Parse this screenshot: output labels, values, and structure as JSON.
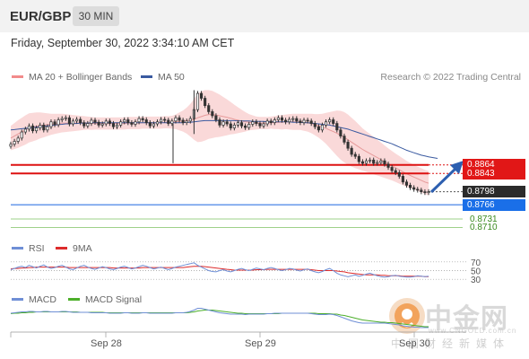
{
  "header": {
    "symbol": "EUR/GBP",
    "timeframe": "30 MIN"
  },
  "timestamp": "Friday, September 30, 2022 3:34:10 AM CET",
  "legend": {
    "bb": {
      "label": "MA 20 + Bollinger Bands",
      "color": "#f28b8b"
    },
    "ma50": {
      "label": "MA 50",
      "color": "#3a5aa0"
    },
    "rsi": {
      "label": "RSI",
      "color": "#6f8fd6"
    },
    "rsi9ma": {
      "label": "9MA",
      "color": "#dd2c2c"
    },
    "macd": {
      "label": "MACD",
      "color": "#6f8fd6"
    },
    "macd_signal": {
      "label": "MACD Signal",
      "color": "#4caf2a"
    }
  },
  "copyright": "Research © 2022 Trading Central",
  "levels": [
    {
      "value": "0.8864",
      "kind": "resistance"
    },
    {
      "value": "0.8843",
      "kind": "resistance"
    },
    {
      "value": "0.8798",
      "kind": "last"
    },
    {
      "value": "0.8766",
      "kind": "pivot"
    },
    {
      "value": "0.8731",
      "kind": "support"
    },
    {
      "value": "0.8710",
      "kind": "support"
    }
  ],
  "rsi_levels": [
    "70",
    "50",
    "30"
  ],
  "dates": [
    "Sep 28",
    "Sep 29",
    "Sep 30"
  ],
  "watermark": {
    "main": "中金网",
    "url": "www.CNGOLD.com.cn",
    "sub": "中国财经新媒体"
  },
  "chart_data": {
    "type": "candlestick",
    "ylim": [
      0.87,
      0.906
    ],
    "price": [
      0.8915,
      0.8922,
      0.893,
      0.8945,
      0.8952,
      0.896,
      0.8948,
      0.8955,
      0.8962,
      0.895,
      0.8958,
      0.897,
      0.8963,
      0.8975,
      0.8978,
      0.898,
      0.8965,
      0.8972,
      0.8976,
      0.8968,
      0.896,
      0.8966,
      0.8974,
      0.8969,
      0.8962,
      0.8965,
      0.8972,
      0.8966,
      0.8958,
      0.8962,
      0.897,
      0.8975,
      0.8968,
      0.8964,
      0.897,
      0.8978,
      0.8975,
      0.8968,
      0.896,
      0.8965,
      0.897,
      0.8976,
      0.8974,
      0.8966,
      0.8972,
      0.898,
      0.8974,
      0.8968,
      0.8972,
      0.8978,
      0.9,
      0.904,
      0.9028,
      0.901,
      0.8995,
      0.8985,
      0.8975,
      0.8962,
      0.897,
      0.8965,
      0.8955,
      0.8962,
      0.8968,
      0.896,
      0.8956,
      0.8964,
      0.897,
      0.8966,
      0.896,
      0.8965,
      0.8972,
      0.8968,
      0.8975,
      0.898,
      0.8974,
      0.897,
      0.8976,
      0.8978,
      0.8972,
      0.8968,
      0.8974,
      0.8972,
      0.8966,
      0.8958,
      0.895,
      0.8962,
      0.897,
      0.8975,
      0.8966,
      0.895,
      0.8935,
      0.892,
      0.8905,
      0.889,
      0.8885,
      0.8872,
      0.8868,
      0.8874,
      0.8876,
      0.8868,
      0.887,
      0.8874,
      0.8866,
      0.8858,
      0.885,
      0.8845,
      0.8836,
      0.8822,
      0.8814,
      0.8808,
      0.8804,
      0.8802,
      0.8798,
      0.8796,
      0.8798
    ],
    "ma20": [
      0.893,
      0.8935,
      0.894,
      0.8945,
      0.895,
      0.8955,
      0.8957,
      0.8959,
      0.8961,
      0.8962,
      0.8963,
      0.8964,
      0.8965,
      0.8966,
      0.8967,
      0.8967,
      0.8967,
      0.8967,
      0.8967,
      0.8967,
      0.8967,
      0.8967,
      0.8966,
      0.8966,
      0.8966,
      0.8966,
      0.8966,
      0.8966,
      0.8966,
      0.8966,
      0.8966,
      0.8966,
      0.8967,
      0.8967,
      0.8967,
      0.8967,
      0.8968,
      0.8968,
      0.8968,
      0.8968,
      0.8968,
      0.8968,
      0.8969,
      0.8969,
      0.8969,
      0.897,
      0.8971,
      0.8972,
      0.8973,
      0.8974,
      0.8976,
      0.898,
      0.8983,
      0.8986,
      0.8988,
      0.8988,
      0.8987,
      0.8985,
      0.8983,
      0.8981,
      0.8979,
      0.8976,
      0.8974,
      0.8972,
      0.897,
      0.8969,
      0.8968,
      0.8967,
      0.8967,
      0.8967,
      0.8967,
      0.8968,
      0.8968,
      0.8969,
      0.8969,
      0.897,
      0.897,
      0.897,
      0.897,
      0.897,
      0.8969,
      0.8968,
      0.8966,
      0.8963,
      0.896,
      0.8957,
      0.8954,
      0.895,
      0.8946,
      0.8942,
      0.8937,
      0.8932,
      0.8926,
      0.892,
      0.8914,
      0.8908,
      0.8902,
      0.8897,
      0.8892,
      0.8887,
      0.8882,
      0.8877,
      0.8872,
      0.8867,
      0.8862,
      0.8857,
      0.8852,
      0.8847,
      0.8842,
      0.8838,
      0.8834,
      0.883,
      0.8826,
      0.8822,
      0.8819
    ],
    "bb_width": [
      0.003,
      0.0032,
      0.0034,
      0.0035,
      0.0036,
      0.0036,
      0.0035,
      0.0034,
      0.0032,
      0.003,
      0.0028,
      0.0026,
      0.0025,
      0.0024,
      0.0023,
      0.0022,
      0.0021,
      0.002,
      0.0019,
      0.0018,
      0.0017,
      0.0016,
      0.0016,
      0.0015,
      0.0015,
      0.0015,
      0.0015,
      0.0015,
      0.0015,
      0.0015,
      0.0015,
      0.0015,
      0.0015,
      0.0015,
      0.0015,
      0.0015,
      0.0015,
      0.0015,
      0.0015,
      0.0015,
      0.0015,
      0.0015,
      0.0015,
      0.0015,
      0.0016,
      0.0018,
      0.0022,
      0.0026,
      0.0032,
      0.004,
      0.005,
      0.006,
      0.0062,
      0.0062,
      0.006,
      0.0058,
      0.0055,
      0.0052,
      0.0048,
      0.0044,
      0.004,
      0.0036,
      0.0032,
      0.0028,
      0.0024,
      0.002,
      0.0018,
      0.0016,
      0.0015,
      0.0015,
      0.0015,
      0.0015,
      0.0016,
      0.0017,
      0.0018,
      0.0018,
      0.0019,
      0.002,
      0.002,
      0.002,
      0.0021,
      0.0022,
      0.0024,
      0.0026,
      0.0029,
      0.0033,
      0.0038,
      0.0044,
      0.005,
      0.0056,
      0.006,
      0.0062,
      0.0062,
      0.006,
      0.0058,
      0.0055,
      0.0052,
      0.005,
      0.0048,
      0.0046,
      0.0044,
      0.0042,
      0.004,
      0.0038,
      0.0036,
      0.0035,
      0.0034,
      0.0033,
      0.0032,
      0.0031,
      0.003,
      0.003,
      0.003,
      0.003,
      0.003
    ],
    "ma50": [
      0.895,
      0.8951,
      0.8952,
      0.8953,
      0.8954,
      0.8955,
      0.8956,
      0.8957,
      0.8958,
      0.8959,
      0.896,
      0.8961,
      0.8962,
      0.8963,
      0.8964,
      0.8965,
      0.8965,
      0.8966,
      0.8966,
      0.8967,
      0.8967,
      0.8967,
      0.8968,
      0.8968,
      0.8968,
      0.8968,
      0.8968,
      0.8968,
      0.8968,
      0.8968,
      0.8968,
      0.8968,
      0.8968,
      0.8968,
      0.8968,
      0.8968,
      0.8968,
      0.8968,
      0.8968,
      0.8968,
      0.8968,
      0.8968,
      0.8968,
      0.8968,
      0.8968,
      0.8968,
      0.8968,
      0.8968,
      0.8969,
      0.8969,
      0.897,
      0.8971,
      0.8972,
      0.8973,
      0.8973,
      0.8973,
      0.8973,
      0.8973,
      0.8973,
      0.8973,
      0.8973,
      0.8973,
      0.8972,
      0.8972,
      0.8972,
      0.8972,
      0.8971,
      0.8971,
      0.8971,
      0.8971,
      0.897,
      0.897,
      0.897,
      0.897,
      0.897,
      0.897,
      0.897,
      0.8969,
      0.8969,
      0.8969,
      0.8968,
      0.8968,
      0.8967,
      0.8966,
      0.8965,
      0.8964,
      0.8963,
      0.8962,
      0.896,
      0.8958,
      0.8956,
      0.8954,
      0.8952,
      0.8949,
      0.8946,
      0.8943,
      0.894,
      0.8937,
      0.8934,
      0.8931,
      0.8928,
      0.8925,
      0.8922,
      0.8919,
      0.8916,
      0.8912,
      0.8908,
      0.8904,
      0.89,
      0.8897,
      0.8894,
      0.8891,
      0.8888,
      0.8886,
      0.8884
    ],
    "rsi": [
      52,
      55,
      58,
      60,
      57,
      62,
      59,
      56,
      60,
      63,
      58,
      55,
      57,
      60,
      62,
      58,
      54,
      52,
      56,
      60,
      62,
      58,
      55,
      53,
      56,
      59,
      57,
      54,
      52,
      55,
      58,
      60,
      57,
      54,
      56,
      59,
      62,
      60,
      57,
      54,
      56,
      58,
      55,
      52,
      55,
      58,
      60,
      62,
      64,
      66,
      68,
      62,
      58,
      54,
      50,
      48,
      47,
      50,
      52,
      49,
      47,
      50,
      53,
      55,
      52,
      50,
      53,
      56,
      54,
      52,
      55,
      57,
      55,
      52,
      50,
      52,
      55,
      54,
      51,
      49,
      52,
      54,
      50,
      47,
      45,
      48,
      52,
      55,
      50,
      44,
      40,
      38,
      36,
      38,
      40,
      37,
      39,
      42,
      44,
      41,
      38,
      36,
      35,
      36,
      38,
      39,
      37,
      36,
      35,
      35,
      36,
      38,
      37,
      36,
      37
    ],
    "rsi_ma": [
      54,
      55,
      55,
      56,
      56,
      57,
      57,
      58,
      58,
      58,
      58,
      58,
      58,
      58,
      58,
      58,
      57,
      57,
      57,
      57,
      57,
      57,
      57,
      57,
      57,
      57,
      57,
      57,
      56,
      56,
      56,
      56,
      56,
      56,
      56,
      56,
      57,
      57,
      57,
      57,
      57,
      57,
      57,
      57,
      57,
      57,
      57,
      57,
      58,
      59,
      60,
      60,
      60,
      59,
      58,
      57,
      56,
      55,
      54,
      53,
      52,
      51,
      51,
      51,
      51,
      51,
      51,
      52,
      52,
      52,
      53,
      53,
      53,
      53,
      53,
      53,
      53,
      53,
      53,
      53,
      53,
      53,
      52,
      51,
      50,
      50,
      50,
      50,
      50,
      49,
      48,
      47,
      45,
      44,
      43,
      42,
      41,
      40,
      40,
      40,
      40,
      39,
      39,
      38,
      38,
      38,
      38,
      37,
      37,
      37,
      37,
      37,
      37,
      36,
      36
    ],
    "macd": [
      0.2,
      0.3,
      0.4,
      0.5,
      0.5,
      0.6,
      0.6,
      0.5,
      0.5,
      0.6,
      0.6,
      0.5,
      0.5,
      0.5,
      0.6,
      0.6,
      0.5,
      0.4,
      0.4,
      0.4,
      0.4,
      0.4,
      0.3,
      0.3,
      0.3,
      0.3,
      0.3,
      0.2,
      0.2,
      0.2,
      0.2,
      0.3,
      0.3,
      0.2,
      0.2,
      0.2,
      0.3,
      0.3,
      0.2,
      0.2,
      0.2,
      0.2,
      0.2,
      0.2,
      0.2,
      0.3,
      0.3,
      0.3,
      0.4,
      0.6,
      0.9,
      1.3,
      1.3,
      1.1,
      0.9,
      0.7,
      0.5,
      0.3,
      0.2,
      0.1,
      0.0,
      0.0,
      0.0,
      0.0,
      -0.1,
      0.0,
      0.0,
      0.0,
      0.0,
      0.0,
      0.1,
      0.1,
      0.2,
      0.2,
      0.2,
      0.2,
      0.2,
      0.2,
      0.2,
      0.2,
      0.2,
      0.2,
      0.1,
      0.0,
      -0.1,
      -0.1,
      -0.1,
      0.0,
      -0.1,
      -0.3,
      -0.6,
      -0.9,
      -1.2,
      -1.5,
      -1.7,
      -1.9,
      -2.0,
      -2.0,
      -2.0,
      -2.0,
      -2.0,
      -2.0,
      -2.0,
      -2.1,
      -2.2,
      -2.3,
      -2.4,
      -2.6,
      -2.7,
      -2.8,
      -2.9,
      -2.9,
      -3.0,
      -3.0,
      -3.0
    ],
    "macd_signal": [
      0.1,
      0.2,
      0.2,
      0.3,
      0.3,
      0.4,
      0.4,
      0.5,
      0.5,
      0.5,
      0.5,
      0.5,
      0.5,
      0.5,
      0.5,
      0.5,
      0.5,
      0.5,
      0.5,
      0.4,
      0.4,
      0.4,
      0.4,
      0.4,
      0.4,
      0.4,
      0.3,
      0.3,
      0.3,
      0.3,
      0.3,
      0.3,
      0.3,
      0.3,
      0.3,
      0.3,
      0.3,
      0.3,
      0.3,
      0.3,
      0.3,
      0.3,
      0.3,
      0.3,
      0.3,
      0.3,
      0.3,
      0.3,
      0.3,
      0.4,
      0.5,
      0.7,
      0.8,
      0.9,
      0.9,
      0.9,
      0.8,
      0.7,
      0.6,
      0.5,
      0.4,
      0.3,
      0.2,
      0.2,
      0.1,
      0.1,
      0.1,
      0.1,
      0.1,
      0.1,
      0.1,
      0.1,
      0.1,
      0.1,
      0.2,
      0.2,
      0.2,
      0.2,
      0.2,
      0.2,
      0.2,
      0.2,
      0.2,
      0.2,
      0.1,
      0.1,
      0.1,
      0.1,
      0.0,
      0.0,
      -0.2,
      -0.3,
      -0.5,
      -0.7,
      -0.9,
      -1.1,
      -1.3,
      -1.4,
      -1.5,
      -1.6,
      -1.7,
      -1.8,
      -1.8,
      -1.9,
      -1.9,
      -2.0,
      -2.1,
      -2.2,
      -2.3,
      -2.4,
      -2.5,
      -2.6,
      -2.7,
      -2.8,
      -2.8
    ]
  }
}
